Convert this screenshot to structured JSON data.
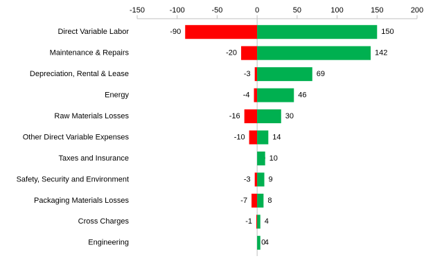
{
  "chart_data": {
    "type": "bar",
    "orientation": "horizontal",
    "categories": [
      "Direct Variable Labor",
      "Maintenance & Repairs",
      "Depreciation, Rental & Lease",
      "Energy",
      "Raw Materials Losses",
      "Other Direct Variable Expenses",
      "Taxes and Insurance",
      "Safety, Security and Environment",
      "Packaging Materials Losses",
      "Cross Charges",
      "Engineering"
    ],
    "series": [
      {
        "color": "#ff0000",
        "values": [
          -90,
          -20,
          -3,
          -4,
          -16,
          -10,
          0,
          -3,
          -7,
          -1,
          0
        ]
      },
      {
        "color": "#00b050",
        "values": [
          150,
          142,
          69,
          46,
          30,
          14,
          10,
          9,
          8,
          4,
          4
        ]
      }
    ],
    "xlim": [
      -150,
      200
    ],
    "xticks": [
      -150,
      -100,
      -50,
      0,
      50,
      100,
      150,
      200
    ],
    "grid": false
  }
}
